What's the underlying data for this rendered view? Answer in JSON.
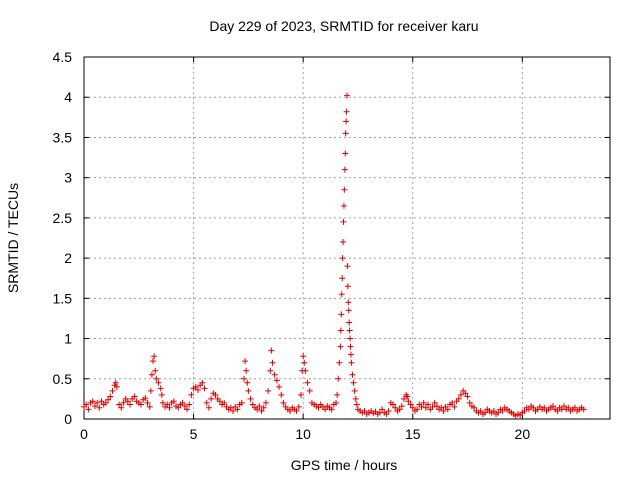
{
  "chart_data": {
    "type": "scatter",
    "title": "Day 229 of 2023, SRMTID for receiver karu",
    "xlabel": "GPS time / hours",
    "ylabel": "SRMTID / TECUs",
    "xlim": [
      0,
      24
    ],
    "ylim": [
      0,
      4.5
    ],
    "xticks": [
      "0",
      "5",
      "10",
      "15",
      "20"
    ],
    "yticks": [
      "0",
      "0.5",
      "1",
      "1.5",
      "2",
      "2.5",
      "3",
      "3.5",
      "4",
      "4.5"
    ],
    "grid": true,
    "marker": "+",
    "color": "#e00000",
    "series": [
      {
        "name": "karu",
        "points": [
          [
            0.0,
            0.15
          ],
          [
            0.1,
            0.18
          ],
          [
            0.2,
            0.12
          ],
          [
            0.3,
            0.2
          ],
          [
            0.4,
            0.22
          ],
          [
            0.5,
            0.16
          ],
          [
            0.6,
            0.2
          ],
          [
            0.7,
            0.14
          ],
          [
            0.8,
            0.22
          ],
          [
            0.9,
            0.18
          ],
          [
            1.0,
            0.2
          ],
          [
            1.1,
            0.24
          ],
          [
            1.2,
            0.28
          ],
          [
            1.3,
            0.35
          ],
          [
            1.4,
            0.42
          ],
          [
            1.45,
            0.45
          ],
          [
            1.5,
            0.4
          ],
          [
            1.6,
            0.18
          ],
          [
            1.7,
            0.14
          ],
          [
            1.8,
            0.2
          ],
          [
            1.9,
            0.25
          ],
          [
            2.0,
            0.22
          ],
          [
            2.1,
            0.18
          ],
          [
            2.2,
            0.25
          ],
          [
            2.3,
            0.28
          ],
          [
            2.4,
            0.22
          ],
          [
            2.5,
            0.2
          ],
          [
            2.6,
            0.18
          ],
          [
            2.7,
            0.24
          ],
          [
            2.8,
            0.26
          ],
          [
            2.9,
            0.2
          ],
          [
            3.0,
            0.15
          ],
          [
            3.05,
            0.35
          ],
          [
            3.1,
            0.55
          ],
          [
            3.15,
            0.72
          ],
          [
            3.2,
            0.78
          ],
          [
            3.25,
            0.6
          ],
          [
            3.3,
            0.5
          ],
          [
            3.4,
            0.45
          ],
          [
            3.5,
            0.38
          ],
          [
            3.55,
            0.3
          ],
          [
            3.6,
            0.2
          ],
          [
            3.7,
            0.15
          ],
          [
            3.8,
            0.18
          ],
          [
            3.9,
            0.14
          ],
          [
            4.0,
            0.2
          ],
          [
            4.1,
            0.22
          ],
          [
            4.2,
            0.16
          ],
          [
            4.3,
            0.14
          ],
          [
            4.4,
            0.18
          ],
          [
            4.5,
            0.2
          ],
          [
            4.6,
            0.16
          ],
          [
            4.7,
            0.12
          ],
          [
            4.8,
            0.18
          ],
          [
            4.9,
            0.3
          ],
          [
            5.0,
            0.38
          ],
          [
            5.1,
            0.4
          ],
          [
            5.2,
            0.36
          ],
          [
            5.3,
            0.42
          ],
          [
            5.4,
            0.45
          ],
          [
            5.5,
            0.38
          ],
          [
            5.6,
            0.2
          ],
          [
            5.7,
            0.14
          ],
          [
            5.8,
            0.25
          ],
          [
            5.9,
            0.32
          ],
          [
            6.0,
            0.3
          ],
          [
            6.1,
            0.25
          ],
          [
            6.2,
            0.22
          ],
          [
            6.3,
            0.18
          ],
          [
            6.4,
            0.2
          ],
          [
            6.5,
            0.15
          ],
          [
            6.6,
            0.12
          ],
          [
            6.7,
            0.14
          ],
          [
            6.8,
            0.1
          ],
          [
            6.9,
            0.15
          ],
          [
            7.0,
            0.12
          ],
          [
            7.1,
            0.18
          ],
          [
            7.2,
            0.2
          ],
          [
            7.3,
            0.5
          ],
          [
            7.35,
            0.72
          ],
          [
            7.4,
            0.6
          ],
          [
            7.45,
            0.45
          ],
          [
            7.5,
            0.35
          ],
          [
            7.6,
            0.25
          ],
          [
            7.7,
            0.18
          ],
          [
            7.8,
            0.14
          ],
          [
            7.9,
            0.12
          ],
          [
            8.0,
            0.16
          ],
          [
            8.1,
            0.1
          ],
          [
            8.2,
            0.14
          ],
          [
            8.3,
            0.2
          ],
          [
            8.4,
            0.35
          ],
          [
            8.5,
            0.6
          ],
          [
            8.55,
            0.85
          ],
          [
            8.6,
            0.7
          ],
          [
            8.7,
            0.55
          ],
          [
            8.8,
            0.48
          ],
          [
            8.9,
            0.4
          ],
          [
            9.0,
            0.3
          ],
          [
            9.1,
            0.2
          ],
          [
            9.2,
            0.15
          ],
          [
            9.3,
            0.12
          ],
          [
            9.4,
            0.1
          ],
          [
            9.5,
            0.14
          ],
          [
            9.6,
            0.12
          ],
          [
            9.7,
            0.1
          ],
          [
            9.8,
            0.15
          ],
          [
            9.9,
            0.3
          ],
          [
            9.95,
            0.6
          ],
          [
            10.0,
            0.78
          ],
          [
            10.05,
            0.7
          ],
          [
            10.1,
            0.6
          ],
          [
            10.2,
            0.45
          ],
          [
            10.3,
            0.35
          ],
          [
            10.4,
            0.2
          ],
          [
            10.5,
            0.18
          ],
          [
            10.6,
            0.16
          ],
          [
            10.7,
            0.14
          ],
          [
            10.8,
            0.18
          ],
          [
            10.9,
            0.15
          ],
          [
            11.0,
            0.12
          ],
          [
            11.1,
            0.16
          ],
          [
            11.2,
            0.14
          ],
          [
            11.3,
            0.12
          ],
          [
            11.4,
            0.18
          ],
          [
            11.5,
            0.2
          ],
          [
            11.55,
            0.3
          ],
          [
            11.6,
            0.5
          ],
          [
            11.65,
            0.7
          ],
          [
            11.7,
            0.9
          ],
          [
            11.72,
            1.1
          ],
          [
            11.74,
            1.3
          ],
          [
            11.76,
            1.55
          ],
          [
            11.78,
            1.75
          ],
          [
            11.8,
            2.0
          ],
          [
            11.82,
            2.2
          ],
          [
            11.84,
            2.45
          ],
          [
            11.86,
            2.65
          ],
          [
            11.88,
            2.85
          ],
          [
            11.9,
            3.1
          ],
          [
            11.92,
            3.3
          ],
          [
            11.94,
            3.55
          ],
          [
            11.96,
            3.7
          ],
          [
            11.98,
            3.82
          ],
          [
            12.0,
            4.02
          ],
          [
            12.02,
            1.9
          ],
          [
            12.04,
            1.65
          ],
          [
            12.06,
            1.45
          ],
          [
            12.08,
            1.35
          ],
          [
            12.1,
            1.2
          ],
          [
            12.12,
            1.1
          ],
          [
            12.14,
            1.0
          ],
          [
            12.16,
            0.9
          ],
          [
            12.18,
            0.8
          ],
          [
            12.2,
            0.7
          ],
          [
            12.25,
            0.55
          ],
          [
            12.3,
            0.45
          ],
          [
            12.35,
            0.35
          ],
          [
            12.4,
            0.25
          ],
          [
            12.45,
            0.18
          ],
          [
            12.5,
            0.12
          ],
          [
            12.6,
            0.1
          ],
          [
            12.7,
            0.08
          ],
          [
            12.8,
            0.1
          ],
          [
            12.9,
            0.06
          ],
          [
            13.0,
            0.08
          ],
          [
            13.1,
            0.1
          ],
          [
            13.2,
            0.07
          ],
          [
            13.3,
            0.09
          ],
          [
            13.4,
            0.06
          ],
          [
            13.5,
            0.08
          ],
          [
            13.6,
            0.12
          ],
          [
            13.7,
            0.08
          ],
          [
            13.8,
            0.06
          ],
          [
            13.9,
            0.1
          ],
          [
            14.0,
            0.2
          ],
          [
            14.1,
            0.18
          ],
          [
            14.2,
            0.14
          ],
          [
            14.3,
            0.1
          ],
          [
            14.4,
            0.12
          ],
          [
            14.5,
            0.16
          ],
          [
            14.6,
            0.25
          ],
          [
            14.7,
            0.3
          ],
          [
            14.75,
            0.28
          ],
          [
            14.8,
            0.22
          ],
          [
            14.9,
            0.18
          ],
          [
            15.0,
            0.14
          ],
          [
            15.1,
            0.1
          ],
          [
            15.2,
            0.12
          ],
          [
            15.3,
            0.18
          ],
          [
            15.4,
            0.15
          ],
          [
            15.5,
            0.2
          ],
          [
            15.6,
            0.14
          ],
          [
            15.7,
            0.18
          ],
          [
            15.8,
            0.12
          ],
          [
            15.9,
            0.15
          ],
          [
            16.0,
            0.2
          ],
          [
            16.1,
            0.16
          ],
          [
            16.2,
            0.12
          ],
          [
            16.3,
            0.14
          ],
          [
            16.4,
            0.1
          ],
          [
            16.5,
            0.15
          ],
          [
            16.6,
            0.12
          ],
          [
            16.7,
            0.18
          ],
          [
            16.8,
            0.2
          ],
          [
            16.9,
            0.15
          ],
          [
            17.0,
            0.22
          ],
          [
            17.1,
            0.25
          ],
          [
            17.2,
            0.3
          ],
          [
            17.3,
            0.35
          ],
          [
            17.4,
            0.32
          ],
          [
            17.5,
            0.28
          ],
          [
            17.6,
            0.2
          ],
          [
            17.7,
            0.16
          ],
          [
            17.8,
            0.14
          ],
          [
            17.9,
            0.1
          ],
          [
            18.0,
            0.08
          ],
          [
            18.1,
            0.1
          ],
          [
            18.2,
            0.06
          ],
          [
            18.3,
            0.08
          ],
          [
            18.4,
            0.12
          ],
          [
            18.5,
            0.1
          ],
          [
            18.6,
            0.08
          ],
          [
            18.7,
            0.1
          ],
          [
            18.8,
            0.06
          ],
          [
            18.9,
            0.08
          ],
          [
            19.0,
            0.12
          ],
          [
            19.1,
            0.1
          ],
          [
            19.2,
            0.14
          ],
          [
            19.3,
            0.12
          ],
          [
            19.4,
            0.1
          ],
          [
            19.5,
            0.08
          ],
          [
            19.6,
            0.06
          ],
          [
            19.7,
            0.04
          ],
          [
            19.8,
            0.06
          ],
          [
            19.9,
            0.05
          ],
          [
            20.0,
            0.08
          ],
          [
            20.1,
            0.1
          ],
          [
            20.2,
            0.14
          ],
          [
            20.3,
            0.12
          ],
          [
            20.4,
            0.16
          ],
          [
            20.5,
            0.14
          ],
          [
            20.6,
            0.1
          ],
          [
            20.7,
            0.12
          ],
          [
            20.8,
            0.15
          ],
          [
            20.9,
            0.12
          ],
          [
            21.0,
            0.14
          ],
          [
            21.1,
            0.1
          ],
          [
            21.2,
            0.12
          ],
          [
            21.3,
            0.14
          ],
          [
            21.4,
            0.16
          ],
          [
            21.5,
            0.12
          ],
          [
            21.6,
            0.1
          ],
          [
            21.7,
            0.14
          ],
          [
            21.8,
            0.12
          ],
          [
            21.9,
            0.16
          ],
          [
            22.0,
            0.12
          ],
          [
            22.1,
            0.14
          ],
          [
            22.2,
            0.1
          ],
          [
            22.3,
            0.12
          ],
          [
            22.4,
            0.14
          ],
          [
            22.5,
            0.1
          ],
          [
            22.6,
            0.12
          ],
          [
            22.7,
            0.14
          ],
          [
            22.8,
            0.12
          ]
        ]
      }
    ]
  }
}
